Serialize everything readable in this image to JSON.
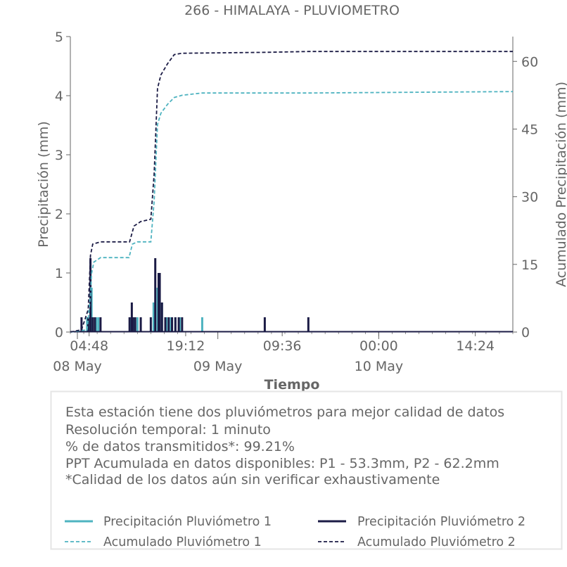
{
  "chart_data": {
    "type": "line",
    "title": "266 - HIMALAYA - PLUVIOMETRO",
    "xlabel": "Tiempo",
    "ylabel": "Precipitación (mm)",
    "y2label": "Acumulado Precipitación (mm)",
    "ylim": [
      0,
      5
    ],
    "y2lim": [
      0,
      65.5
    ],
    "xlim": [
      "2024-05-08 02:00",
      "2024-05-10 20:00"
    ],
    "grid": false,
    "legend_position": "bottom",
    "x_time_ticks": [
      "04:48",
      "19:12",
      "09:36",
      "00:00",
      "14:24"
    ],
    "x_date_ticks": [
      "08 May",
      "09 May",
      "10 May"
    ],
    "y_ticks": [
      "0",
      "1",
      "2",
      "3",
      "4",
      "5"
    ],
    "y2_ticks": [
      "0",
      "15",
      "30",
      "45",
      "60"
    ],
    "colors": {
      "p1": "#4eb3c0",
      "p2": "#1b1b45",
      "axis": "#666666"
    },
    "series": [
      {
        "name": "Precipitación Pluviómetro 1",
        "axis": "left",
        "style": "solid",
        "color": "#4eb3c0",
        "x": [
          "2024-05-08 04:30",
          "2024-05-08 04:50",
          "2024-05-08 05:10",
          "2024-05-08 05:50",
          "2024-05-08 06:10",
          "2024-05-08 11:00",
          "2024-05-08 11:30",
          "2024-05-08 12:00",
          "2024-05-08 14:25",
          "2024-05-08 15:00",
          "2024-05-08 15:40",
          "2024-05-08 16:20",
          "2024-05-08 17:00",
          "2024-05-08 17:40",
          "2024-05-08 18:20",
          "2024-05-08 21:40"
        ],
        "y": [
          0.25,
          0.25,
          0.75,
          0.25,
          0.25,
          0.25,
          0.25,
          0.25,
          0.5,
          0.75,
          0.5,
          0.25,
          0.25,
          0.25,
          0.25,
          0.25
        ]
      },
      {
        "name": "Precipitación Pluviómetro 2",
        "axis": "left",
        "style": "solid",
        "color": "#1b1b45",
        "x": [
          "2024-05-08 03:40",
          "2024-05-08 04:40",
          "2024-05-08 05:00",
          "2024-05-08 05:20",
          "2024-05-08 05:40",
          "2024-05-08 06:30",
          "2024-05-08 10:50",
          "2024-05-08 11:10",
          "2024-05-08 11:20",
          "2024-05-08 11:40",
          "2024-05-08 12:30",
          "2024-05-08 14:00",
          "2024-05-08 14:40",
          "2024-05-08 15:10",
          "2024-05-08 15:20",
          "2024-05-08 15:40",
          "2024-05-08 16:10",
          "2024-05-08 16:40",
          "2024-05-08 17:10",
          "2024-05-08 17:40",
          "2024-05-08 18:10",
          "2024-05-08 18:40",
          "2024-05-09 07:00",
          "2024-05-09 13:30"
        ],
        "y": [
          0.25,
          0.25,
          1.25,
          0.25,
          0.25,
          0.25,
          0.25,
          0.5,
          0.25,
          0.25,
          0.25,
          0.25,
          1.25,
          1.0,
          1.0,
          0.5,
          0.25,
          0.25,
          0.25,
          0.25,
          0.25,
          0.25,
          0.25,
          0.25
        ]
      },
      {
        "name": "Acumulado Pluviómetro 1",
        "axis": "right",
        "style": "dashed",
        "color": "#4eb3c0",
        "x": [
          "2024-05-08 02:00",
          "2024-05-08 04:30",
          "2024-05-08 05:00",
          "2024-05-08 05:10",
          "2024-05-08 05:30",
          "2024-05-08 06:30",
          "2024-05-08 10:45",
          "2024-05-08 11:15",
          "2024-05-08 12:00",
          "2024-05-08 14:00",
          "2024-05-08 14:30",
          "2024-05-08 15:00",
          "2024-05-08 15:30",
          "2024-05-08 16:30",
          "2024-05-08 17:30",
          "2024-05-08 18:40",
          "2024-05-08 21:40",
          "2024-05-09 13:30",
          "2024-05-10 20:00"
        ],
        "y": [
          0,
          0.5,
          8,
          13,
          15.5,
          16.5,
          16.5,
          19.5,
          20,
          20,
          29,
          46,
          48.5,
          50.5,
          52,
          52.5,
          53,
          53,
          53.3
        ]
      },
      {
        "name": "Acumulado Pluviómetro 2",
        "axis": "right",
        "style": "dashed",
        "color": "#1b1b45",
        "x": [
          "2024-05-08 02:00",
          "2024-05-08 03:40",
          "2024-05-08 04:40",
          "2024-05-08 05:00",
          "2024-05-08 05:20",
          "2024-05-08 06:30",
          "2024-05-08 10:50",
          "2024-05-08 11:30",
          "2024-05-08 12:30",
          "2024-05-08 14:00",
          "2024-05-08 14:30",
          "2024-05-08 15:00",
          "2024-05-08 15:30",
          "2024-05-08 16:30",
          "2024-05-08 17:30",
          "2024-05-08 18:40",
          "2024-05-09 07:00",
          "2024-05-09 13:30",
          "2024-05-10 20:00"
        ],
        "y": [
          0,
          0.5,
          5,
          17,
          19.5,
          20,
          20,
          23.5,
          24.5,
          25,
          35,
          54,
          57,
          59.5,
          61.5,
          61.8,
          62,
          62.2,
          62.2
        ]
      }
    ]
  },
  "info": {
    "lines": [
      "Esta estación tiene dos pluviómetros para mejor calidad de datos",
      "Resolución temporal: 1 minuto",
      "% de datos transmitidos*: 99.21%",
      "PPT Acumulada en datos disponibles: P1 - 53.3mm, P2 - 62.2mm",
      "*Calidad de los datos aún sin verificar exhaustivamente"
    ]
  }
}
